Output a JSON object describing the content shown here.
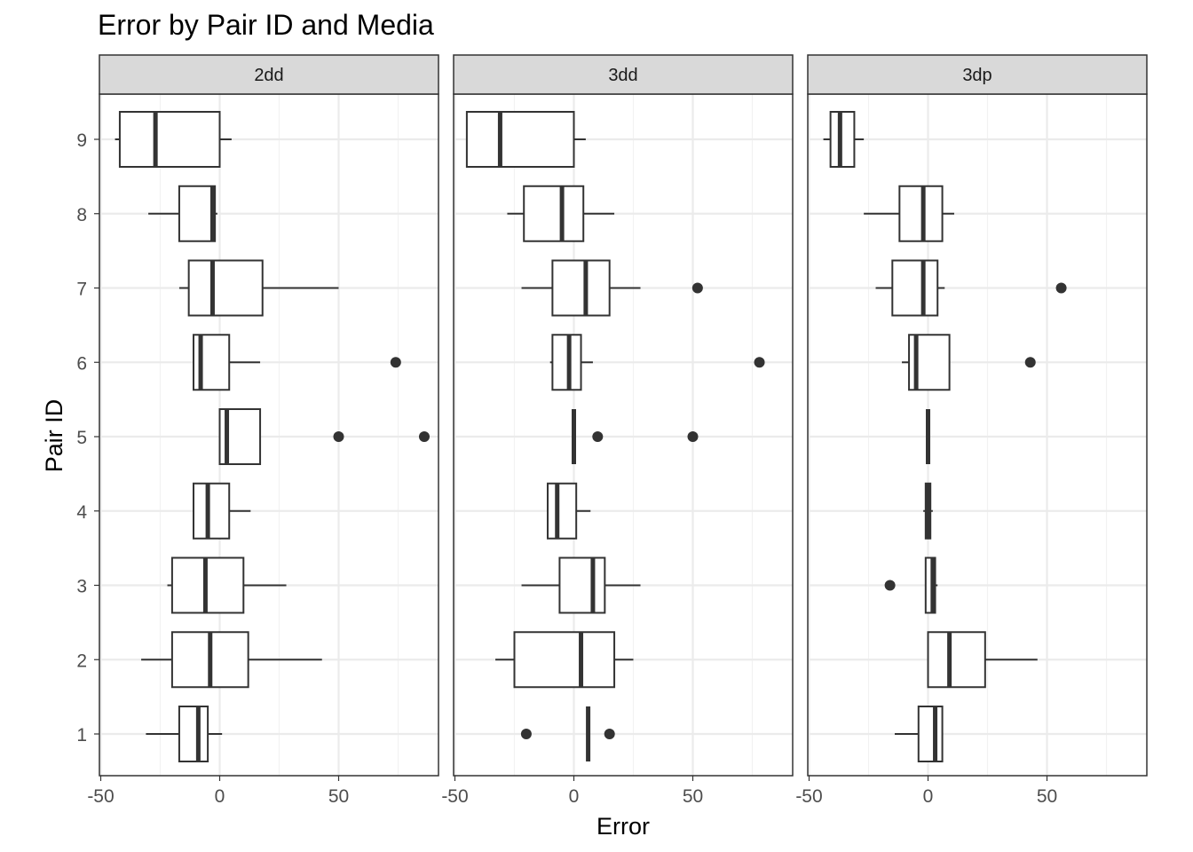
{
  "chart_data": {
    "type": "boxplot",
    "title": "Error by Pair ID and Media",
    "xlabel": "Error",
    "ylabel": "Pair ID",
    "xlim": [
      -50,
      90
    ],
    "x_ticks": [
      -50,
      0,
      50
    ],
    "x_tick_labels": [
      "-50",
      "0",
      "50"
    ],
    "y_categories": [
      "1",
      "2",
      "3",
      "4",
      "5",
      "6",
      "7",
      "8",
      "9"
    ],
    "grid": true,
    "theme": "bw",
    "colors": {
      "box_stroke": "#333333",
      "point": "#333333",
      "strip_bg": "#d9d9d9",
      "grid_major": "#ebebeb",
      "grid_minor": "#f2f2f2",
      "panel_border": "#333333"
    },
    "facets": [
      {
        "name": "2dd",
        "boxes": [
          {
            "pair": "1",
            "whisker_low": -31,
            "q1": -17,
            "median": -9,
            "q3": -5,
            "whisker_high": 1,
            "outliers": []
          },
          {
            "pair": "2",
            "whisker_low": -33,
            "q1": -20,
            "median": -4,
            "q3": 12,
            "whisker_high": 43,
            "outliers": []
          },
          {
            "pair": "3",
            "whisker_low": -22,
            "q1": -20,
            "median": -6,
            "q3": 10,
            "whisker_high": 28,
            "outliers": []
          },
          {
            "pair": "4",
            "whisker_low": -11,
            "q1": -11,
            "median": -5,
            "q3": 4,
            "whisker_high": 13,
            "outliers": []
          },
          {
            "pair": "5",
            "whisker_low": 0,
            "q1": 0,
            "median": 3,
            "q3": 17,
            "whisker_high": 17,
            "outliers": [
              50,
              86
            ]
          },
          {
            "pair": "6",
            "whisker_low": -11,
            "q1": -11,
            "median": -8,
            "q3": 4,
            "whisker_high": 17,
            "outliers": [
              74
            ]
          },
          {
            "pair": "7",
            "whisker_low": -17,
            "q1": -13,
            "median": -3,
            "q3": 18,
            "whisker_high": 50,
            "outliers": []
          },
          {
            "pair": "8",
            "whisker_low": -30,
            "q1": -17,
            "median": -3,
            "q3": -2,
            "whisker_high": -1,
            "outliers": []
          },
          {
            "pair": "9",
            "whisker_low": -44,
            "q1": -42,
            "median": -27,
            "q3": 0,
            "whisker_high": 5,
            "outliers": []
          }
        ]
      },
      {
        "name": "3dd",
        "boxes": [
          {
            "pair": "1",
            "whisker_low": 6,
            "q1": 6,
            "median": 6,
            "q3": 6,
            "whisker_high": 6,
            "outliers": [
              -20,
              15
            ]
          },
          {
            "pair": "2",
            "whisker_low": -33,
            "q1": -25,
            "median": 3,
            "q3": 17,
            "whisker_high": 25,
            "outliers": []
          },
          {
            "pair": "3",
            "whisker_low": -22,
            "q1": -6,
            "median": 8,
            "q3": 13,
            "whisker_high": 28,
            "outliers": []
          },
          {
            "pair": "4",
            "whisker_low": -11,
            "q1": -11,
            "median": -7,
            "q3": 1,
            "whisker_high": 7,
            "outliers": []
          },
          {
            "pair": "5",
            "whisker_low": 0,
            "q1": 0,
            "median": 0,
            "q3": 0,
            "whisker_high": 0,
            "outliers": [
              10,
              50
            ]
          },
          {
            "pair": "6",
            "whisker_low": -10,
            "q1": -9,
            "median": -2,
            "q3": 3,
            "whisker_high": 8,
            "outliers": [
              78
            ]
          },
          {
            "pair": "7",
            "whisker_low": -22,
            "q1": -9,
            "median": 5,
            "q3": 15,
            "whisker_high": 28,
            "outliers": [
              52
            ]
          },
          {
            "pair": "8",
            "whisker_low": -28,
            "q1": -21,
            "median": -5,
            "q3": 4,
            "whisker_high": 17,
            "outliers": []
          },
          {
            "pair": "9",
            "whisker_low": -45,
            "q1": -45,
            "median": -31,
            "q3": 0,
            "whisker_high": 5,
            "outliers": []
          }
        ]
      },
      {
        "name": "3dp",
        "boxes": [
          {
            "pair": "1",
            "whisker_low": -14,
            "q1": -4,
            "median": 3,
            "q3": 6,
            "whisker_high": 6,
            "outliers": []
          },
          {
            "pair": "2",
            "whisker_low": 0,
            "q1": 0,
            "median": 9,
            "q3": 24,
            "whisker_high": 46,
            "outliers": []
          },
          {
            "pair": "3",
            "whisker_low": -1,
            "q1": -1,
            "median": 2,
            "q3": 3,
            "whisker_high": 4,
            "outliers": [
              -16
            ]
          },
          {
            "pair": "4",
            "whisker_low": -2,
            "q1": -1,
            "median": 0,
            "q3": 1,
            "whisker_high": 2,
            "outliers": []
          },
          {
            "pair": "5",
            "whisker_low": 0,
            "q1": 0,
            "median": 0,
            "q3": 0,
            "whisker_high": 0,
            "outliers": []
          },
          {
            "pair": "6",
            "whisker_low": -11,
            "q1": -8,
            "median": -5,
            "q3": 9,
            "whisker_high": 9,
            "outliers": [
              43
            ]
          },
          {
            "pair": "7",
            "whisker_low": -22,
            "q1": -15,
            "median": -2,
            "q3": 4,
            "whisker_high": 7,
            "outliers": [
              56
            ]
          },
          {
            "pair": "8",
            "whisker_low": -27,
            "q1": -12,
            "median": -2,
            "q3": 6,
            "whisker_high": 11,
            "outliers": []
          },
          {
            "pair": "9",
            "whisker_low": -44,
            "q1": -41,
            "median": -37,
            "q3": -31,
            "whisker_high": -27,
            "outliers": []
          }
        ]
      }
    ]
  }
}
